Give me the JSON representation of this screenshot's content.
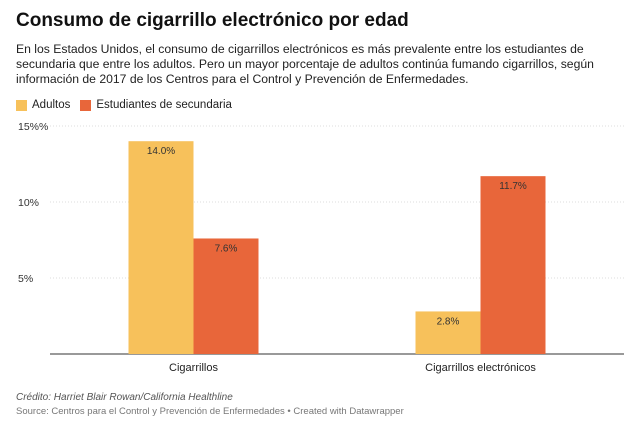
{
  "header": {
    "title": "Consumo de cigarrillo electrónico por edad",
    "subtitle": "En los Estados Unidos, el consumo de cigarrillos electrónicos es más prevalente entre los estudiantes de secundaria que entre los adultos. Pero un mayor porcentaje de adultos continúa fumando cigarrillos, según información de 2017 de los Centros para el Control y Prevención de Enfermedades."
  },
  "footer": {
    "credit": "Crédito: Harriet Blair Rowan/California Healthline",
    "source": "Source: Centros para el Control y Prevención de Enfermedades • Created with Datawrapper"
  },
  "colors": {
    "adultos": "#f7c15b",
    "estudiantes": "#e8663a",
    "grid": "#dddddd",
    "axis": "#333333"
  },
  "chart_data": {
    "type": "bar",
    "title": "Consumo de cigarrillo electrónico por edad",
    "categories": [
      "Cigarrillos",
      "Cigarrillos electrónicos"
    ],
    "series": [
      {
        "name": "Adultos",
        "values": [
          14.0,
          2.8
        ],
        "labels": [
          "14.0%",
          "2.8%"
        ]
      },
      {
        "name": "Estudiantes de secundaria",
        "values": [
          7.6,
          11.7
        ],
        "labels": [
          "7.6%",
          "11.7%"
        ]
      }
    ],
    "yticks": [
      5,
      10,
      15
    ],
    "ytick_labels": [
      "5%",
      "10%",
      "15%%"
    ],
    "ylim": [
      0,
      15
    ],
    "legend": "top-left",
    "grid": true
  }
}
